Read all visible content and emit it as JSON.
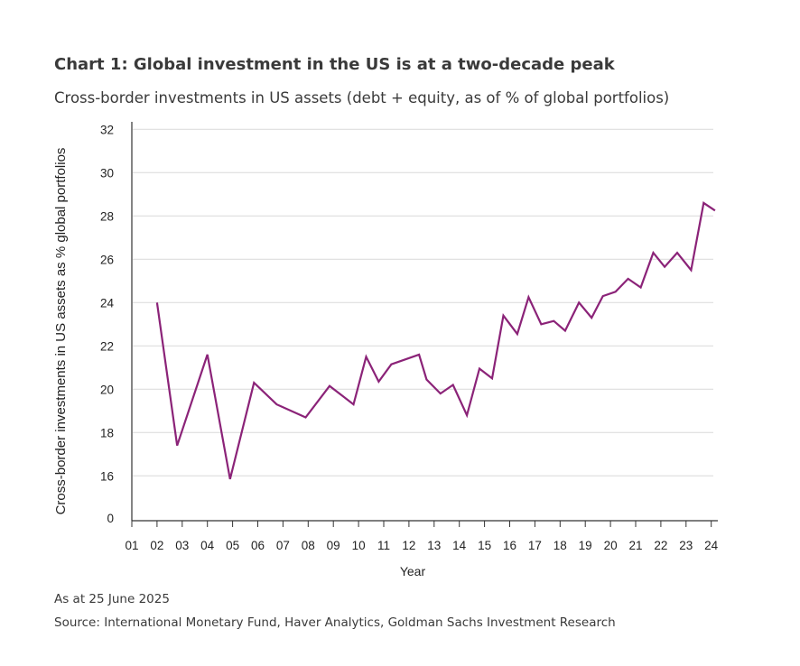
{
  "header": {
    "title": "Chart 1: Global investment in the US is at a two-decade peak",
    "subtitle": "Cross-border investments in US assets (debt + equity, as of % of global portfolios)"
  },
  "footer": {
    "date_note": "As at 25 June 2025",
    "source": "Source: International Monetary Fund, Haver Analytics, Goldman Sachs Investment Research"
  },
  "chart_data": {
    "type": "line",
    "title": "Chart 1: Global investment in the US is at a two-decade peak",
    "subtitle": "Cross-border investments in US assets (debt + equity, as of % of global portfolios)",
    "xlabel": "Year",
    "ylabel": "Cross-border investments in US assets as % global portfolios",
    "x_tick_labels": [
      "01",
      "02",
      "03",
      "04",
      "05",
      "06",
      "07",
      "08",
      "09",
      "10",
      "11",
      "12",
      "13",
      "14",
      "15",
      "16",
      "17",
      "18",
      "19",
      "20",
      "21",
      "22",
      "23",
      "24"
    ],
    "y_tick_labels": [
      "0",
      "16",
      "18",
      "20",
      "22",
      "24",
      "26",
      "28",
      "30",
      "32"
    ],
    "y_axis_break": "axis jumps from 0 to 16",
    "ylim": [
      16,
      32
    ],
    "xlim": [
      2001,
      2024.3
    ],
    "grid": true,
    "line_color": "#8b2378",
    "x": [
      2002.0,
      2002.8,
      2004.0,
      2004.9,
      2005.85,
      2006.75,
      2007.9,
      2008.85,
      2009.8,
      2010.3,
      2010.8,
      2011.3,
      2012.4,
      2012.7,
      2013.25,
      2013.75,
      2014.3,
      2014.8,
      2015.3,
      2015.75,
      2016.3,
      2016.75,
      2017.25,
      2017.75,
      2018.2,
      2018.75,
      2019.25,
      2019.7,
      2020.2,
      2020.7,
      2021.2,
      2021.7,
      2022.15,
      2022.65,
      2023.2,
      2023.7,
      2024.15
    ],
    "values": [
      24.0,
      17.4,
      21.6,
      15.85,
      20.3,
      19.3,
      18.7,
      20.15,
      19.3,
      21.5,
      20.35,
      21.15,
      21.6,
      20.45,
      19.8,
      20.2,
      18.8,
      20.95,
      20.5,
      23.4,
      22.55,
      24.25,
      23.0,
      23.15,
      22.7,
      24.0,
      23.3,
      24.3,
      24.5,
      25.1,
      24.7,
      26.3,
      25.65,
      26.3,
      25.5,
      28.6,
      28.25
    ]
  }
}
